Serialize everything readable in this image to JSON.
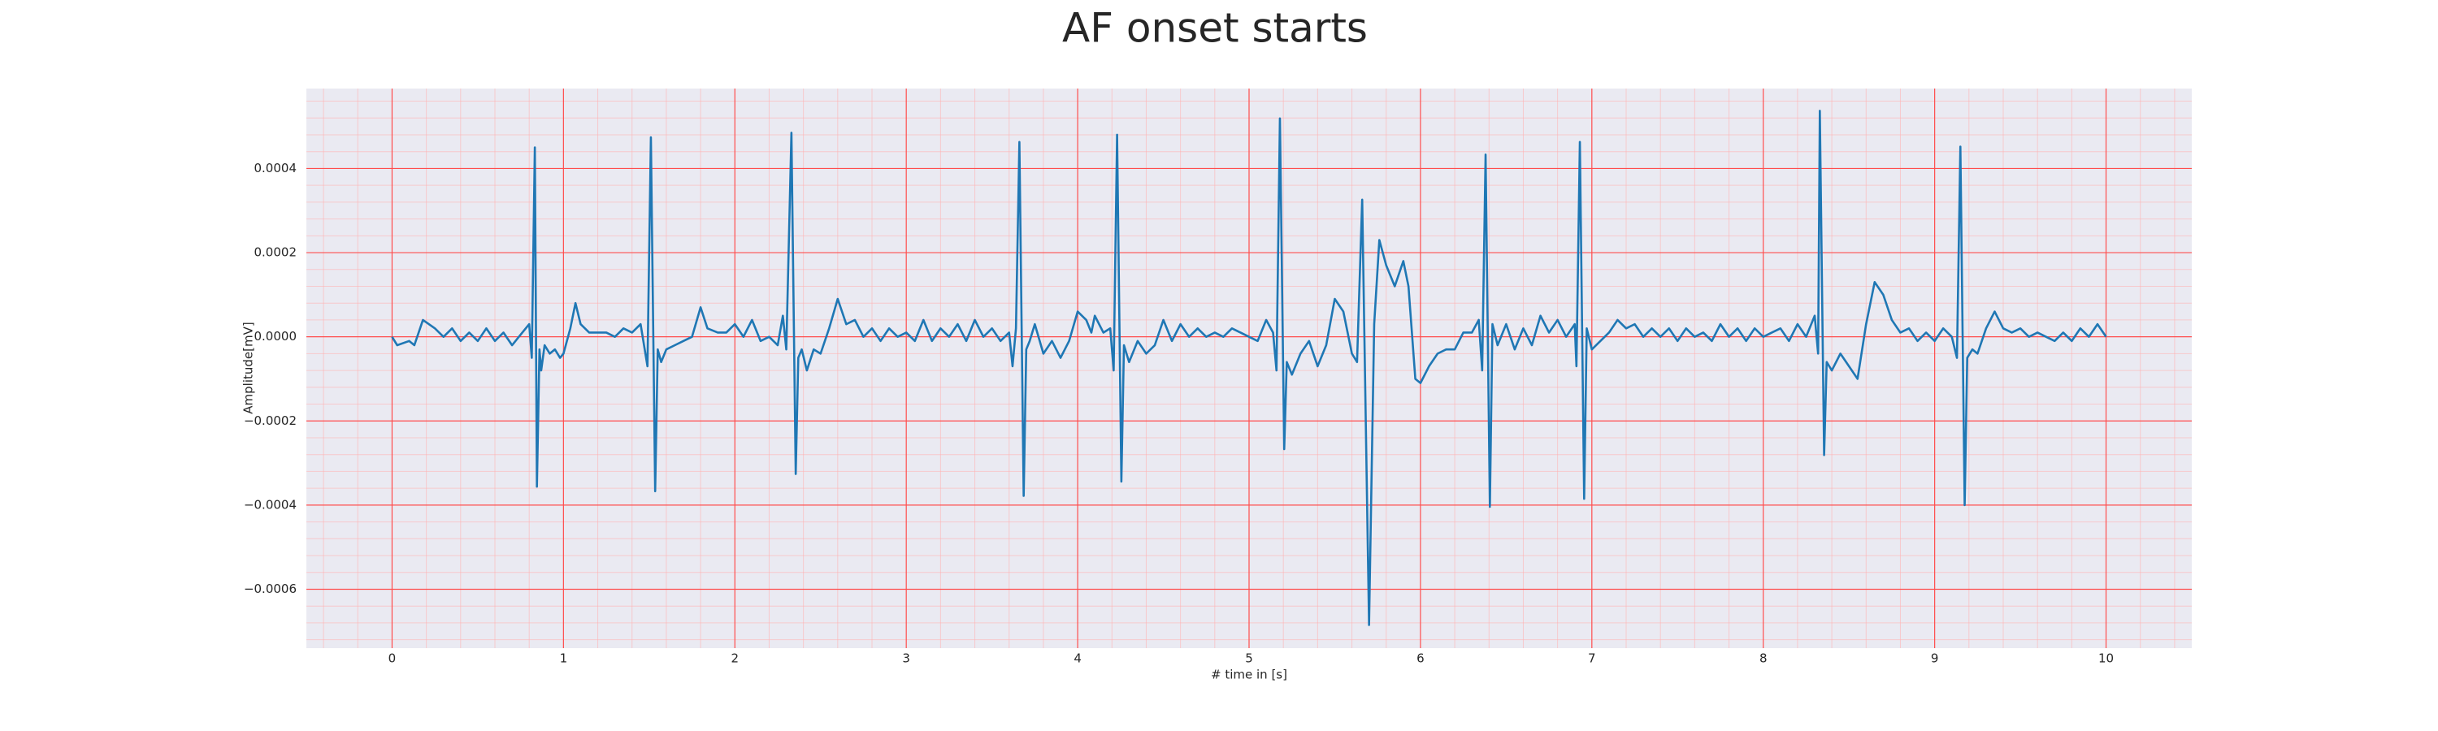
{
  "chart_data": {
    "type": "line",
    "title": "AF onset starts",
    "xlabel": "# time in [s]",
    "ylabel": "Amplitude[mV]",
    "color": "#1f77b4",
    "grid": true,
    "minor_grid": true,
    "xlim": [
      -0.5,
      10.5
    ],
    "ylim": [
      -0.00074,
      0.00059
    ],
    "xticks": [
      0,
      1,
      2,
      3,
      4,
      5,
      6,
      7,
      8,
      9,
      10
    ],
    "yticks": [
      {
        "value": -0.0006,
        "label": "−0.0006"
      },
      {
        "value": -0.0004,
        "label": "−0.0004"
      },
      {
        "value": -0.0002,
        "label": "−0.0002"
      },
      {
        "value": 0,
        "label": "0.0000"
      },
      {
        "value": 0.0002,
        "label": "0.0002"
      },
      {
        "value": 0.0004,
        "label": "0.0004"
      }
    ],
    "x": [
      0,
      0.03,
      0.1,
      0.13,
      0.18,
      0.25,
      0.3,
      0.35,
      0.4,
      0.45,
      0.5,
      0.55,
      0.6,
      0.65,
      0.7,
      0.76,
      0.8,
      0.815,
      0.833,
      0.845,
      0.86,
      0.87,
      0.89,
      0.92,
      0.95,
      0.98,
      1.0,
      1.04,
      1.07,
      1.1,
      1.15,
      1.2,
      1.25,
      1.3,
      1.35,
      1.4,
      1.45,
      1.49,
      1.51,
      1.535,
      1.55,
      1.57,
      1.6,
      1.65,
      1.7,
      1.75,
      1.8,
      1.84,
      1.9,
      1.95,
      2.0,
      2.05,
      2.1,
      2.15,
      2.2,
      2.25,
      2.28,
      2.3,
      2.33,
      2.355,
      2.37,
      2.39,
      2.42,
      2.46,
      2.5,
      2.55,
      2.6,
      2.65,
      2.7,
      2.75,
      2.8,
      2.85,
      2.9,
      2.95,
      3.0,
      3.05,
      3.1,
      3.15,
      3.2,
      3.25,
      3.3,
      3.35,
      3.4,
      3.45,
      3.5,
      3.55,
      3.6,
      3.62,
      3.64,
      3.66,
      3.685,
      3.7,
      3.72,
      3.75,
      3.8,
      3.85,
      3.9,
      3.95,
      4.0,
      4.05,
      4.08,
      4.1,
      4.15,
      4.19,
      4.21,
      4.23,
      4.255,
      4.27,
      4.3,
      4.35,
      4.4,
      4.45,
      4.5,
      4.55,
      4.6,
      4.65,
      4.7,
      4.75,
      4.8,
      4.85,
      4.9,
      4.95,
      5.0,
      5.05,
      5.1,
      5.14,
      5.16,
      5.18,
      5.205,
      5.22,
      5.25,
      5.3,
      5.35,
      5.4,
      5.45,
      5.5,
      5.55,
      5.6,
      5.63,
      5.66,
      5.7,
      5.73,
      5.76,
      5.8,
      5.85,
      5.9,
      5.93,
      5.97,
      6.0,
      6.05,
      6.1,
      6.15,
      6.2,
      6.25,
      6.3,
      6.34,
      6.36,
      6.38,
      6.405,
      6.42,
      6.45,
      6.5,
      6.55,
      6.6,
      6.65,
      6.7,
      6.75,
      6.8,
      6.85,
      6.9,
      6.91,
      6.93,
      6.955,
      6.97,
      7.0,
      7.05,
      7.1,
      7.15,
      7.2,
      7.25,
      7.3,
      7.35,
      7.4,
      7.45,
      7.5,
      7.55,
      7.6,
      7.65,
      7.7,
      7.75,
      7.8,
      7.85,
      7.9,
      7.95,
      8.0,
      8.05,
      8.1,
      8.15,
      8.2,
      8.25,
      8.3,
      8.32,
      8.33,
      8.355,
      8.37,
      8.4,
      8.45,
      8.5,
      8.55,
      8.6,
      8.65,
      8.7,
      8.75,
      8.8,
      8.85,
      8.9,
      8.95,
      9.0,
      9.05,
      9.1,
      9.13,
      9.15,
      9.175,
      9.19,
      9.22,
      9.25,
      9.3,
      9.35,
      9.4,
      9.45,
      9.5,
      9.55,
      9.6,
      9.65,
      9.7,
      9.75,
      9.8,
      9.85,
      9.9,
      9.95,
      10.0
    ],
    "values": [
      0,
      -2e-05,
      -1e-05,
      -2e-05,
      4e-05,
      2e-05,
      0,
      2e-05,
      -1e-05,
      1e-05,
      -1e-05,
      2e-05,
      -1e-05,
      1e-05,
      -2e-05,
      1e-05,
      3e-05,
      -5e-05,
      0.00045,
      -0.000356,
      -3e-05,
      -8e-05,
      -2e-05,
      -4e-05,
      -3e-05,
      -5e-05,
      -4e-05,
      2e-05,
      8e-05,
      3e-05,
      1e-05,
      1e-05,
      1e-05,
      0,
      2e-05,
      1e-05,
      3e-05,
      -7e-05,
      0.000474,
      -0.000367,
      -3e-05,
      -6e-05,
      -3e-05,
      -2e-05,
      -1e-05,
      0,
      7e-05,
      2e-05,
      1e-05,
      1e-05,
      3e-05,
      0,
      4e-05,
      -1e-05,
      0,
      -2e-05,
      5e-05,
      -3e-05,
      0.000485,
      -0.000326,
      -5e-05,
      -3e-05,
      -8e-05,
      -3e-05,
      -4e-05,
      2e-05,
      9e-05,
      3e-05,
      4e-05,
      0,
      2e-05,
      -1e-05,
      2e-05,
      0,
      1e-05,
      -1e-05,
      4e-05,
      -1e-05,
      2e-05,
      0,
      3e-05,
      -1e-05,
      4e-05,
      0,
      2e-05,
      -1e-05,
      1e-05,
      -7e-05,
      2e-05,
      0.000463,
      -0.000378,
      -3e-05,
      -1e-05,
      3e-05,
      -4e-05,
      -1e-05,
      -5e-05,
      -1e-05,
      6e-05,
      4e-05,
      1e-05,
      5e-05,
      1e-05,
      2e-05,
      -8e-05,
      0.00048,
      -0.000344,
      -2e-05,
      -6e-05,
      -1e-05,
      -4e-05,
      -2e-05,
      4e-05,
      -1e-05,
      3e-05,
      0,
      2e-05,
      0,
      1e-05,
      0,
      2e-05,
      1e-05,
      0,
      -1e-05,
      4e-05,
      1e-05,
      -8e-05,
      0.000519,
      -0.000267,
      -6e-05,
      -9e-05,
      -4e-05,
      -1e-05,
      -7e-05,
      -2e-05,
      9e-05,
      6e-05,
      -4e-05,
      -6e-05,
      0.000326,
      -0.000685,
      3e-05,
      0.00023,
      0.00017,
      0.00012,
      0.00018,
      0.00012,
      -0.0001,
      -0.00011,
      -7e-05,
      -4e-05,
      -3e-05,
      -3e-05,
      1e-05,
      1e-05,
      4e-05,
      -8e-05,
      0.000433,
      -0.000404,
      3e-05,
      -2e-05,
      3e-05,
      -3e-05,
      2e-05,
      -2e-05,
      5e-05,
      1e-05,
      4e-05,
      0,
      3e-05,
      -7e-05,
      0.000463,
      -0.000385,
      2e-05,
      -3e-05,
      -1e-05,
      1e-05,
      4e-05,
      2e-05,
      3e-05,
      0,
      2e-05,
      0,
      2e-05,
      -1e-05,
      2e-05,
      0,
      1e-05,
      -1e-05,
      3e-05,
      0,
      2e-05,
      -1e-05,
      2e-05,
      0,
      1e-05,
      2e-05,
      -1e-05,
      3e-05,
      0,
      5e-05,
      -4e-05,
      0.000537,
      -0.000281,
      -6e-05,
      -8e-05,
      -4e-05,
      -7e-05,
      -0.0001,
      3e-05,
      0.00013,
      0.0001,
      4e-05,
      1e-05,
      2e-05,
      -1e-05,
      1e-05,
      -1e-05,
      2e-05,
      0,
      -5e-05,
      0.000452,
      -0.0004,
      -5e-05,
      -3e-05,
      -4e-05,
      2e-05,
      6e-05,
      2e-05,
      1e-05,
      2e-05,
      0,
      1e-05,
      0,
      -1e-05,
      1e-05,
      -1e-05,
      2e-05,
      0,
      3e-05,
      0
    ]
  }
}
